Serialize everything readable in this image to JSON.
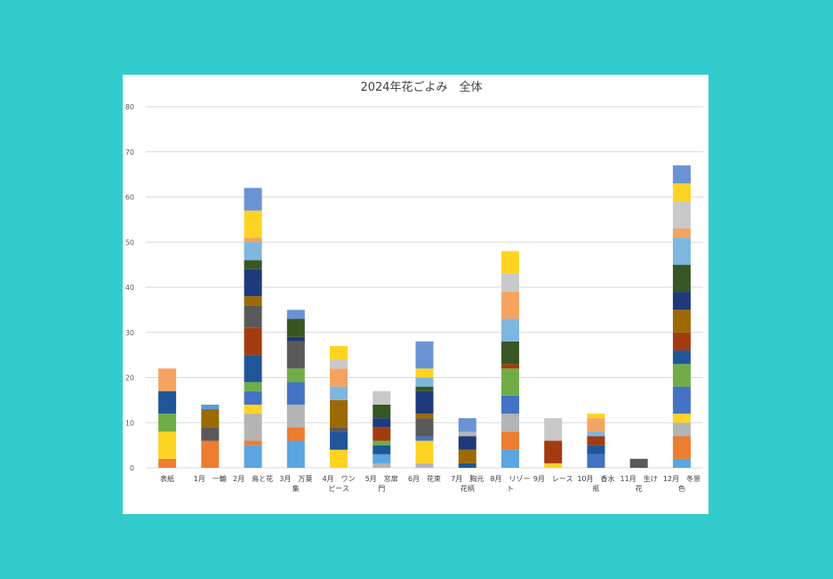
{
  "chart_data": {
    "type": "bar",
    "stacked": true,
    "title": "2024年花ごよみ　全体",
    "xlabel": "",
    "ylabel": "",
    "ylim": [
      0,
      80
    ],
    "yticks": [
      0,
      10,
      20,
      30,
      40,
      50,
      60,
      70,
      80
    ],
    "grid": true,
    "legend": "none",
    "categories": [
      {
        "lines": [
          "表紙"
        ]
      },
      {
        "lines": [
          "1月　一輪"
        ]
      },
      {
        "lines": [
          "2月　鳥と花"
        ]
      },
      {
        "lines": [
          "3月　万葉",
          "集"
        ]
      },
      {
        "lines": [
          "4月　ワン",
          "ピース"
        ]
      },
      {
        "lines": [
          "5月　窓扉",
          "門"
        ]
      },
      {
        "lines": [
          "6月　花束"
        ]
      },
      {
        "lines": [
          "7月　胸元",
          "花柄"
        ]
      },
      {
        "lines": [
          "8月　リゾー",
          "ト"
        ]
      },
      {
        "lines": [
          "9月　レース"
        ]
      },
      {
        "lines": [
          "10月　香水",
          "瓶"
        ]
      },
      {
        "lines": [
          "11月　生け",
          "花"
        ]
      },
      {
        "lines": [
          "12月　冬景",
          "色"
        ]
      }
    ],
    "stacks": [
      [
        {
          "v": 2,
          "c": "#ed7d31"
        },
        {
          "v": 6,
          "c": "#ffd322"
        },
        {
          "v": 4,
          "c": "#70ad47"
        },
        {
          "v": 5,
          "c": "#1f5699"
        },
        {
          "v": 5,
          "c": "#f4a460"
        }
      ],
      [
        {
          "v": 6,
          "c": "#ed7d31"
        },
        {
          "v": 3,
          "c": "#595959"
        },
        {
          "v": 4,
          "c": "#9c6a00"
        },
        {
          "v": 1,
          "c": "#5b9bd5"
        }
      ],
      [
        {
          "v": 5,
          "c": "#5ba5e0"
        },
        {
          "v": 1,
          "c": "#ed7d31"
        },
        {
          "v": 6,
          "c": "#b4b4b4"
        },
        {
          "v": 2,
          "c": "#ffd322"
        },
        {
          "v": 3,
          "c": "#4472c4"
        },
        {
          "v": 2,
          "c": "#70ad47"
        },
        {
          "v": 6,
          "c": "#1f5699"
        },
        {
          "v": 6,
          "c": "#a33b10"
        },
        {
          "v": 5,
          "c": "#595959"
        },
        {
          "v": 2,
          "c": "#9c6a00"
        },
        {
          "v": 6,
          "c": "#1e3a7a"
        },
        {
          "v": 2,
          "c": "#375623"
        },
        {
          "v": 4,
          "c": "#7eb6e0"
        },
        {
          "v": 1,
          "c": "#f4a460"
        },
        {
          "v": 6,
          "c": "#ffd322"
        },
        {
          "v": 5,
          "c": "#6a93d4"
        }
      ],
      [
        {
          "v": 6,
          "c": "#5ba5e0"
        },
        {
          "v": 3,
          "c": "#ed7d31"
        },
        {
          "v": 5,
          "c": "#b4b4b4"
        },
        {
          "v": 5,
          "c": "#4472c4"
        },
        {
          "v": 3,
          "c": "#70ad47"
        },
        {
          "v": 6,
          "c": "#595959"
        },
        {
          "v": 1,
          "c": "#1e3a7a"
        },
        {
          "v": 4,
          "c": "#375623"
        },
        {
          "v": 2,
          "c": "#6a93d4"
        }
      ],
      [
        {
          "v": 4,
          "c": "#ffd322"
        },
        {
          "v": 4,
          "c": "#1f5699"
        },
        {
          "v": 1,
          "c": "#595959"
        },
        {
          "v": 6,
          "c": "#9c6a00"
        },
        {
          "v": 3,
          "c": "#7eb6e0"
        },
        {
          "v": 4,
          "c": "#f4a460"
        },
        {
          "v": 2,
          "c": "#c9c9c9"
        },
        {
          "v": 3,
          "c": "#ffd322"
        }
      ],
      [
        {
          "v": 1,
          "c": "#b4b4b4"
        },
        {
          "v": 2,
          "c": "#5ba5e0"
        },
        {
          "v": 2,
          "c": "#1f5699"
        },
        {
          "v": 1,
          "c": "#70ad47"
        },
        {
          "v": 3,
          "c": "#a33b10"
        },
        {
          "v": 2,
          "c": "#1e3a7a"
        },
        {
          "v": 3,
          "c": "#375623"
        },
        {
          "v": 3,
          "c": "#c9c9c9"
        }
      ],
      [
        {
          "v": 1,
          "c": "#b4b4b4"
        },
        {
          "v": 5,
          "c": "#ffd322"
        },
        {
          "v": 1,
          "c": "#4472c4"
        },
        {
          "v": 4,
          "c": "#595959"
        },
        {
          "v": 1,
          "c": "#9c6a00"
        },
        {
          "v": 5,
          "c": "#1e3a7a"
        },
        {
          "v": 1,
          "c": "#375623"
        },
        {
          "v": 2,
          "c": "#7eb6e0"
        },
        {
          "v": 2,
          "c": "#ffd322"
        },
        {
          "v": 6,
          "c": "#6a93d4"
        }
      ],
      [
        {
          "v": 1,
          "c": "#1f5699"
        },
        {
          "v": 3,
          "c": "#9c6a00"
        },
        {
          "v": 3,
          "c": "#1e3a7a"
        },
        {
          "v": 1,
          "c": "#b4b4b4"
        },
        {
          "v": 3,
          "c": "#6a93d4"
        }
      ],
      [
        {
          "v": 4,
          "c": "#5ba5e0"
        },
        {
          "v": 4,
          "c": "#ed7d31"
        },
        {
          "v": 4,
          "c": "#b4b4b4"
        },
        {
          "v": 4,
          "c": "#4472c4"
        },
        {
          "v": 6,
          "c": "#70ad47"
        },
        {
          "v": 1,
          "c": "#a33b10"
        },
        {
          "v": 5,
          "c": "#375623"
        },
        {
          "v": 5,
          "c": "#7eb6e0"
        },
        {
          "v": 6,
          "c": "#f4a460"
        },
        {
          "v": 4,
          "c": "#c9c9c9"
        },
        {
          "v": 5,
          "c": "#ffd322"
        }
      ],
      [
        {
          "v": 1,
          "c": "#ffd322"
        },
        {
          "v": 5,
          "c": "#a33b10"
        },
        {
          "v": 5,
          "c": "#c9c9c9"
        }
      ],
      [
        {
          "v": 3,
          "c": "#4472c4"
        },
        {
          "v": 2,
          "c": "#1f5699"
        },
        {
          "v": 2,
          "c": "#a33b10"
        },
        {
          "v": 1,
          "c": "#7eb6e0"
        },
        {
          "v": 3,
          "c": "#f4a460"
        },
        {
          "v": 1,
          "c": "#ffd322"
        }
      ],
      [
        {
          "v": 2,
          "c": "#595959"
        }
      ],
      [
        {
          "v": 2,
          "c": "#5ba5e0"
        },
        {
          "v": 5,
          "c": "#ed7d31"
        },
        {
          "v": 3,
          "c": "#b4b4b4"
        },
        {
          "v": 2,
          "c": "#ffd322"
        },
        {
          "v": 6,
          "c": "#4472c4"
        },
        {
          "v": 5,
          "c": "#70ad47"
        },
        {
          "v": 3,
          "c": "#1f5699"
        },
        {
          "v": 4,
          "c": "#a33b10"
        },
        {
          "v": 5,
          "c": "#9c6a00"
        },
        {
          "v": 4,
          "c": "#1e3a7a"
        },
        {
          "v": 6,
          "c": "#375623"
        },
        {
          "v": 6,
          "c": "#7eb6e0"
        },
        {
          "v": 2,
          "c": "#f4a460"
        },
        {
          "v": 6,
          "c": "#c9c9c9"
        },
        {
          "v": 4,
          "c": "#ffd322"
        },
        {
          "v": 4,
          "c": "#6a93d4"
        }
      ]
    ]
  },
  "colors": {
    "background": "#33cccc",
    "panel": "#ffffff",
    "gridline": "#d9d9d9"
  }
}
